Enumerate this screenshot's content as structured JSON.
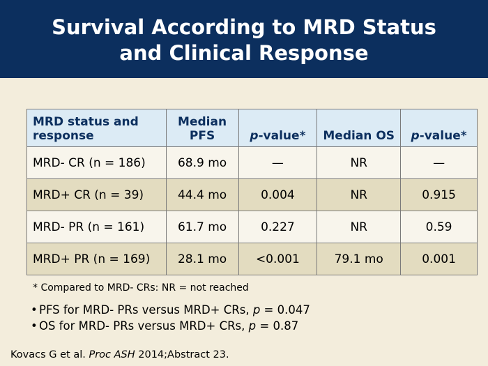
{
  "title": {
    "line1": "Survival According to MRD Status",
    "line2": "and Clinical Response"
  },
  "table": {
    "headers": {
      "status": "MRD status and response",
      "median_pfs": "Median PFS",
      "pfs_pvalue_p": "p",
      "pfs_pvalue_rest": "-value*",
      "median_os": "Median OS",
      "os_pvalue_p": "p",
      "os_pvalue_rest": "-value*"
    },
    "rows": [
      {
        "status": "MRD- CR (n = 186)",
        "pfs": "68.9 mo",
        "pfs_p": "—",
        "os": "NR",
        "os_p": "—"
      },
      {
        "status": "MRD+ CR (n = 39)",
        "pfs": "44.4 mo",
        "pfs_p": "0.004",
        "os": "NR",
        "os_p": "0.915"
      },
      {
        "status": "MRD- PR (n = 161)",
        "pfs": "61.7 mo",
        "pfs_p": "0.227",
        "os": "NR",
        "os_p": "0.59"
      },
      {
        "status": "MRD+ PR (n = 169)",
        "pfs": "28.1 mo",
        "pfs_p": "<0.001",
        "os": "79.1 mo",
        "os_p": "0.001"
      }
    ]
  },
  "footnote": "* Compared to MRD- CRs: NR = not reached",
  "bullets": [
    {
      "text": "PFS for MRD- PRs versus MRD+ CRs, ",
      "p": "p",
      "value": " = 0.047"
    },
    {
      "text": "OS for MRD- PRs versus MRD+ CRs, ",
      "p": "p",
      "value": " = 0.87"
    }
  ],
  "citation": {
    "authors": "Kovacs G et al. ",
    "journal": "Proc ASH",
    "rest": " 2014;Abstract 23."
  },
  "colors": {
    "title_bar": "#0c2f5e",
    "background": "#f3eddc",
    "header_row": "#dcebf5",
    "row_light": "#f8f5ec",
    "row_dark": "#e3dcc0"
  }
}
